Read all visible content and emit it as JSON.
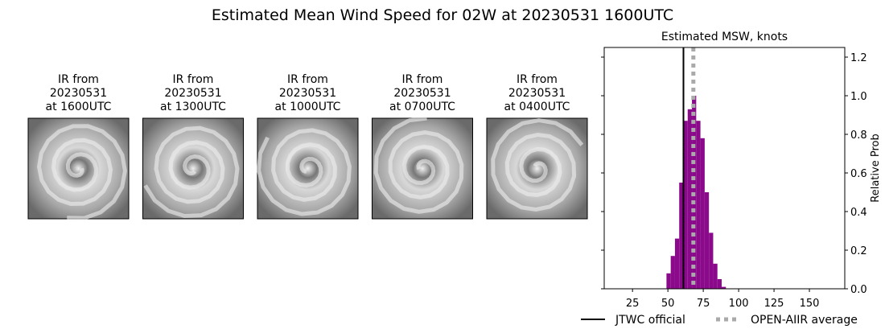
{
  "title": "Estimated Mean Wind Speed for 02W at 20230531 1600UTC",
  "panels": [
    {
      "label_lines": [
        "IR from",
        "20230531",
        "at 1600UTC"
      ]
    },
    {
      "label_lines": [
        "IR from",
        "20230531",
        "at 1300UTC"
      ]
    },
    {
      "label_lines": [
        "IR from",
        "20230531",
        "at 1000UTC"
      ]
    },
    {
      "label_lines": [
        "IR from",
        "20230531",
        "at 0700UTC"
      ]
    },
    {
      "label_lines": [
        "IR from",
        "20230531",
        "at 0400UTC"
      ]
    }
  ],
  "chart_data": {
    "type": "histogram",
    "title": "Estimated MSW, knots",
    "y_label": "Relative Prob",
    "bins": [
      49,
      52,
      55,
      58,
      61,
      64,
      67,
      70,
      73,
      76,
      79,
      82,
      85,
      88,
      91
    ],
    "values": [
      0.08,
      0.17,
      0.26,
      0.55,
      0.87,
      0.93,
      1.0,
      0.87,
      0.78,
      0.5,
      0.29,
      0.13,
      0.05,
      0.01
    ],
    "color": "#8b0a8b",
    "xlim": [
      5,
      175
    ],
    "xticks": [
      25,
      50,
      75,
      100,
      125,
      150
    ],
    "ylim": [
      0,
      1.25
    ],
    "yticks": [
      {
        "value": 0,
        "label": "0.0"
      },
      {
        "value": 0.2,
        "label": "0.2"
      },
      {
        "value": 0.4,
        "label": "0.4"
      },
      {
        "value": 0.6,
        "label": "0.6"
      },
      {
        "value": 0.8,
        "label": "0.8"
      },
      {
        "value": 1.0,
        "label": "1.0"
      },
      {
        "value": 1.2,
        "label": "1.2"
      }
    ],
    "lines": [
      {
        "name": "JTWC official",
        "x": 61,
        "color": "#000000",
        "style": "solid"
      },
      {
        "name": "OPEN-AIIR average",
        "x": 68,
        "color": "#aaaaaa",
        "style": "dotted"
      }
    ]
  }
}
